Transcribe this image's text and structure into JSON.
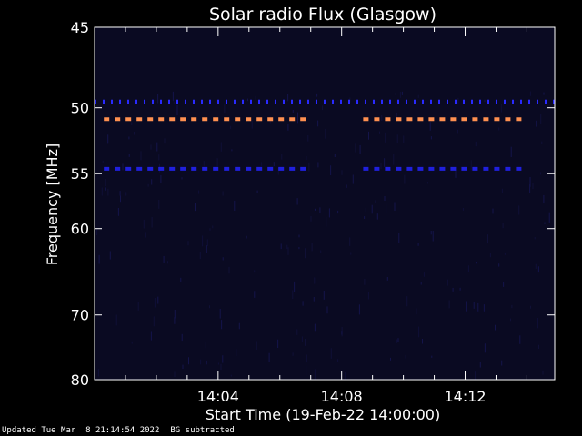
{
  "chart_data": {
    "type": "heatmap",
    "title": "Solar radio Flux (Glasgow)",
    "xlabel": "Start Time (19-Feb-22 14:00:00)",
    "ylabel": "Frequency [MHz]",
    "x_ticks": [
      "14:04",
      "14:08",
      "14:12"
    ],
    "x_tick_minutes": [
      4,
      8,
      12
    ],
    "xlim_minutes": [
      0,
      14.9
    ],
    "y_ticks": [
      45,
      50,
      55,
      60,
      70,
      80
    ],
    "ylim": [
      45,
      80
    ],
    "y_scale": "reciprocal",
    "grid": false,
    "colors": {
      "background": "#000000",
      "plot_bg": "#0a0a22",
      "axes": "#ffffff"
    },
    "bands": [
      {
        "freq": 49.6,
        "start_min": 0.0,
        "end_min": 14.9,
        "color": "#2a2aff",
        "style": "dotted"
      },
      {
        "freq": 50.8,
        "start_min": 0.3,
        "end_min": 6.9,
        "color": "#ff9050",
        "style": "dashed"
      },
      {
        "freq": 50.8,
        "start_min": 8.7,
        "end_min": 13.9,
        "color": "#ff9050",
        "style": "dashed"
      },
      {
        "freq": 54.6,
        "start_min": 0.3,
        "end_min": 6.9,
        "color": "#2020dd",
        "style": "dashed"
      },
      {
        "freq": 54.6,
        "start_min": 8.7,
        "end_min": 13.9,
        "color": "#2020dd",
        "style": "dashed"
      }
    ]
  },
  "footer": {
    "updated": "Updated Tue Mar  8 21:14:54 2022",
    "note": "BG subtracted"
  }
}
